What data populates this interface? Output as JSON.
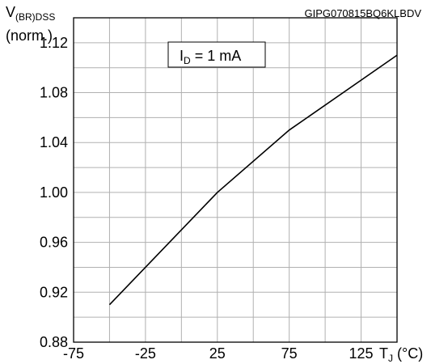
{
  "chart_data": {
    "type": "line",
    "code_label": "GIPG070815BQ6KLBDV",
    "ylabel_main": "V",
    "ylabel_sub": "(BR)DSS",
    "ylabel_unit": "(norm.)",
    "xlabel_main": "T",
    "xlabel_sub": "J",
    "xlabel_unit": " (°C)",
    "annotation_main": "I",
    "annotation_sub": "D",
    "annotation_value": " = 1 mA",
    "xlim": [
      -75,
      150
    ],
    "ylim": [
      0.88,
      1.14
    ],
    "x_ticks": [
      "-75",
      "-25",
      "25",
      "75",
      "125"
    ],
    "x_tick_values": [
      -75,
      -25,
      25,
      75,
      125
    ],
    "y_ticks": [
      "0.88",
      "0.92",
      "0.96",
      "1.00",
      "1.04",
      "1.08",
      "1.12"
    ],
    "y_tick_values": [
      0.88,
      0.92,
      0.96,
      1.0,
      1.04,
      1.08,
      1.12
    ],
    "grid_x_step": 25,
    "grid_y_step": 0.02,
    "grid": true,
    "series": [
      {
        "x": [
          -50,
          25,
          75,
          150
        ],
        "y": [
          0.91,
          1.0,
          1.05,
          1.11
        ]
      }
    ]
  }
}
